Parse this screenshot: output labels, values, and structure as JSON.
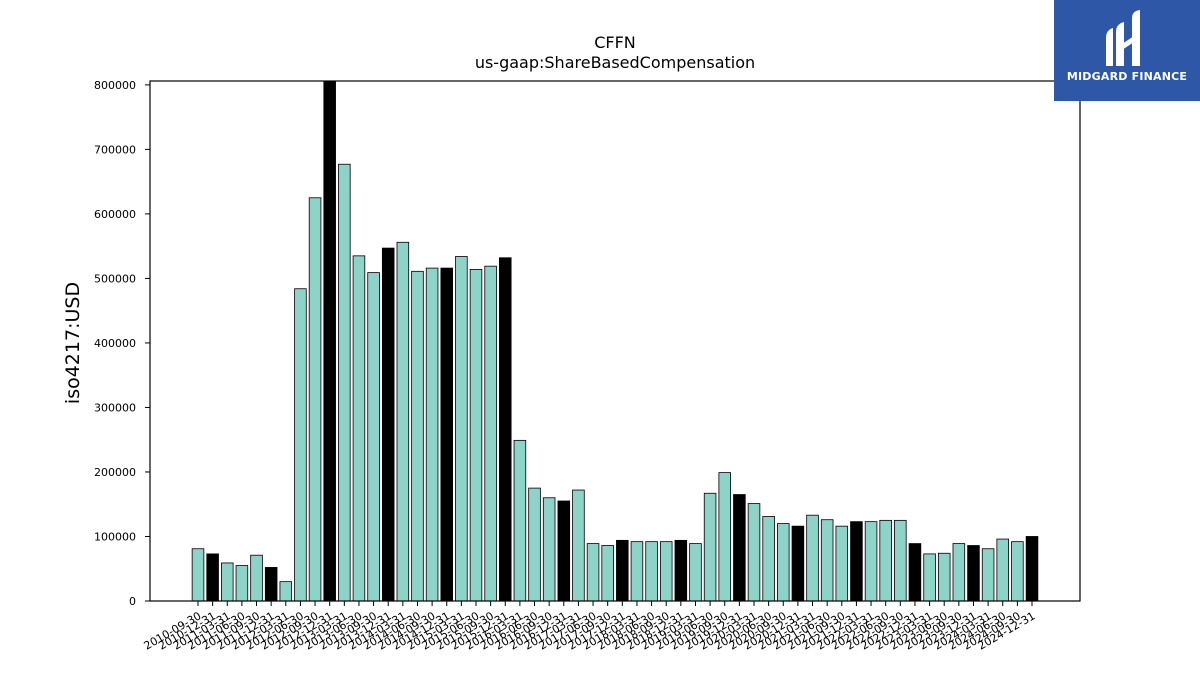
{
  "chart_data": {
    "type": "bar",
    "title": "CFFN",
    "subtitle": "us-gaap:ShareBasedCompensation",
    "xlabel": "",
    "ylabel": "iso4217:USD",
    "ylim": [
      0,
      806000
    ],
    "yticks": [
      0,
      100000,
      200000,
      300000,
      400000,
      500000,
      600000,
      700000,
      800000
    ],
    "colors": {
      "normal": "#8dd3c7",
      "highlight": "#000000",
      "edge": "#000000"
    },
    "categories": [
      "2010-09-30",
      "2010-12-31",
      "2011-03-31",
      "2011-06-30",
      "2011-09-30",
      "2011-12-31",
      "2012-03-31",
      "2012-06-30",
      "2012-09-30",
      "2012-12-31",
      "2013-03-31",
      "2013-06-30",
      "2013-09-30",
      "2013-12-31",
      "2014-03-31",
      "2014-06-30",
      "2014-09-30",
      "2014-12-31",
      "2015-03-31",
      "2015-06-30",
      "2015-09-30",
      "2015-12-31",
      "2016-03-31",
      "2016-06-30",
      "2016-09-30",
      "2016-12-31",
      "2017-03-31",
      "2017-06-30",
      "2017-09-30",
      "2017-12-31",
      "2018-03-31",
      "2018-06-30",
      "2018-09-30",
      "2018-12-31",
      "2019-03-31",
      "2019-06-30",
      "2019-09-30",
      "2019-12-31",
      "2020-03-31",
      "2020-06-30",
      "2020-09-30",
      "2020-12-31",
      "2021-03-31",
      "2021-06-30",
      "2021-09-30",
      "2021-12-31",
      "2022-03-31",
      "2022-06-30",
      "2022-09-30",
      "2022-12-31",
      "2023-03-31",
      "2023-06-30",
      "2023-09-30",
      "2023-12-31",
      "2024-03-31",
      "2024-06-30",
      "2024-09-30",
      "2024-12-31"
    ],
    "values": [
      81000,
      73000,
      59000,
      55000,
      71000,
      52000,
      30000,
      484000,
      625000,
      806000,
      677000,
      535000,
      509000,
      547000,
      556000,
      511000,
      516000,
      516000,
      534000,
      514000,
      519000,
      532000,
      249000,
      175000,
      160000,
      155000,
      172000,
      89000,
      86000,
      94000,
      92000,
      92000,
      92000,
      94000,
      89000,
      167000,
      199000,
      165000,
      151000,
      131000,
      120000,
      116000,
      133000,
      126000,
      116000,
      123000,
      123000,
      125000,
      125000,
      89000,
      73000,
      74000,
      89000,
      86000,
      81000,
      96000,
      92000,
      100000
    ],
    "highlight": [
      false,
      true,
      false,
      false,
      false,
      true,
      false,
      false,
      false,
      true,
      false,
      false,
      false,
      true,
      false,
      false,
      false,
      true,
      false,
      false,
      false,
      true,
      false,
      false,
      false,
      true,
      false,
      false,
      false,
      true,
      false,
      false,
      false,
      true,
      false,
      false,
      false,
      true,
      false,
      false,
      false,
      true,
      false,
      false,
      false,
      true,
      false,
      false,
      false,
      true,
      false,
      false,
      false,
      true,
      false,
      false,
      false,
      true
    ],
    "grid": false,
    "legend": "none"
  },
  "logo": {
    "text": "MIDGARD FINANCE",
    "icon": "midgard-logo-icon"
  }
}
